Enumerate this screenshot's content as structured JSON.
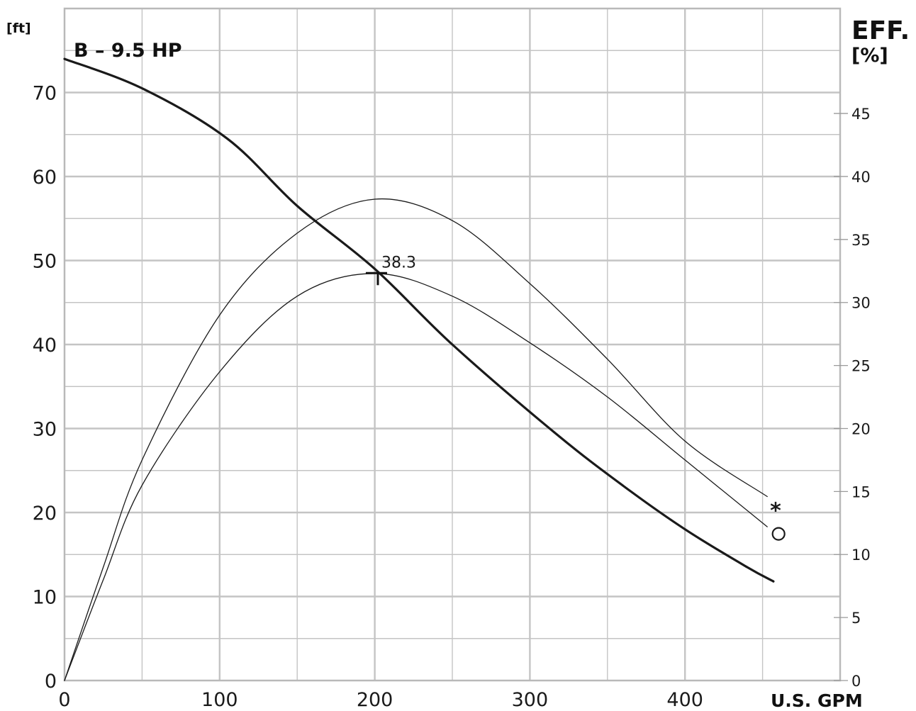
{
  "chart_data": {
    "type": "line",
    "title": "B – 9.5 HP",
    "xlabel": "U.S. GPM",
    "ylabel_left": "[ft]",
    "ylabel_right_line1": "EFF.",
    "ylabel_right_line2": "[%]",
    "xlim": [
      0,
      500
    ],
    "ylim_left": [
      0,
      80
    ],
    "ylim_right": [
      0,
      53.33
    ],
    "x_ticks": [
      0,
      100,
      200,
      300,
      400
    ],
    "y_left_ticks": [
      0,
      10,
      20,
      30,
      40,
      50,
      60,
      70
    ],
    "y_right_ticks": [
      0,
      5,
      10,
      15,
      20,
      25,
      30,
      35,
      40,
      45
    ],
    "grid": true,
    "bep": {
      "x": 202,
      "y": 48.5,
      "label": "38.3"
    },
    "series": [
      {
        "axis": "left",
        "style": "thick",
        "x": [
          0,
          50,
          105,
          150,
          200,
          250,
          316,
          360,
          400,
          440,
          457
        ],
        "y": [
          74,
          70.5,
          64.5,
          56.5,
          49,
          40,
          29.5,
          23.2,
          18,
          13.5,
          11.8
        ]
      },
      {
        "axis": "right",
        "style": "thin",
        "marker": "*",
        "x": [
          0,
          25,
          50,
          100,
          150,
          200,
          250,
          300,
          350,
          400,
          453
        ],
        "y": [
          0,
          9,
          17.5,
          29,
          35.5,
          38.2,
          36.5,
          31.5,
          25.5,
          19,
          14.6
        ]
      },
      {
        "axis": "right",
        "style": "thin",
        "marker": "O",
        "x": [
          0,
          25,
          50,
          100,
          150,
          200,
          250,
          300,
          350,
          400,
          453
        ],
        "y": [
          0,
          8,
          15.5,
          24.5,
          30.5,
          32.3,
          30.5,
          26.8,
          22.5,
          17.5,
          12.2
        ]
      }
    ]
  }
}
